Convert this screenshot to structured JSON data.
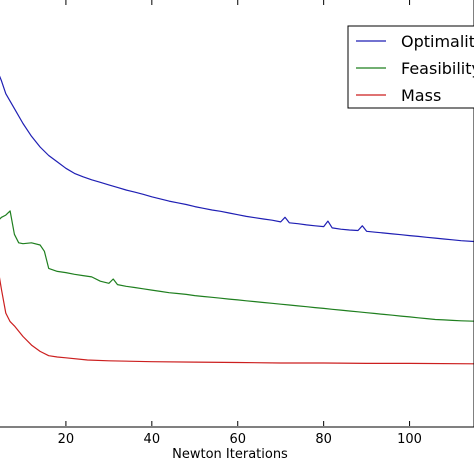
{
  "chart_data": {
    "type": "line",
    "title": "",
    "xlabel": "Newton Iterations",
    "ylabel": "",
    "xlim": [
      0,
      115
    ],
    "ylim": [
      0,
      1
    ],
    "x_ticks": [
      20,
      40,
      60,
      80,
      100
    ],
    "grid": false,
    "legend_position": "top-right",
    "series": [
      {
        "name": "Optimality",
        "color": "#1f1fb4",
        "x": [
          0,
          2,
          4,
          5,
          6,
          8,
          10,
          12,
          14,
          16,
          18,
          20,
          22,
          24,
          26,
          28,
          30,
          32,
          34,
          36,
          38,
          40,
          42,
          44,
          46,
          48,
          50,
          52,
          54,
          56,
          58,
          60,
          62,
          64,
          66,
          68,
          70,
          71,
          72,
          74,
          76,
          78,
          80,
          81,
          82,
          84,
          86,
          88,
          89,
          90,
          92,
          94,
          96,
          98,
          100,
          102,
          104,
          106,
          108,
          110,
          112,
          115
        ],
        "y": [
          0.845,
          0.845,
          0.835,
          0.81,
          0.78,
          0.745,
          0.71,
          0.68,
          0.655,
          0.635,
          0.62,
          0.605,
          0.593,
          0.585,
          0.578,
          0.572,
          0.566,
          0.56,
          0.554,
          0.549,
          0.544,
          0.538,
          0.533,
          0.528,
          0.524,
          0.52,
          0.515,
          0.511,
          0.507,
          0.504,
          0.5,
          0.496,
          0.492,
          0.489,
          0.486,
          0.483,
          0.479,
          0.49,
          0.477,
          0.475,
          0.472,
          0.47,
          0.468,
          0.481,
          0.465,
          0.462,
          0.46,
          0.459,
          0.47,
          0.457,
          0.455,
          0.453,
          0.451,
          0.449,
          0.447,
          0.445,
          0.443,
          0.441,
          0.439,
          0.437,
          0.435,
          0.433
        ]
      },
      {
        "name": "Feasibility",
        "color": "#1f7f1f",
        "x": [
          0,
          2,
          4,
          5,
          6,
          7,
          8,
          9,
          10,
          12,
          14,
          15,
          16,
          18,
          20,
          22,
          24,
          26,
          28,
          30,
          31,
          32,
          34,
          36,
          38,
          40,
          42,
          44,
          46,
          48,
          50,
          52,
          54,
          56,
          58,
          60,
          62,
          64,
          66,
          68,
          70,
          72,
          74,
          76,
          78,
          80,
          82,
          84,
          86,
          88,
          90,
          92,
          94,
          96,
          98,
          100,
          102,
          104,
          106,
          108,
          110,
          112,
          115
        ],
        "y": [
          0.49,
          0.49,
          0.48,
          0.49,
          0.495,
          0.505,
          0.45,
          0.43,
          0.428,
          0.43,
          0.425,
          0.41,
          0.37,
          0.363,
          0.36,
          0.356,
          0.353,
          0.35,
          0.34,
          0.335,
          0.345,
          0.332,
          0.328,
          0.325,
          0.322,
          0.319,
          0.316,
          0.313,
          0.311,
          0.309,
          0.306,
          0.304,
          0.302,
          0.3,
          0.298,
          0.296,
          0.294,
          0.292,
          0.29,
          0.288,
          0.286,
          0.284,
          0.282,
          0.28,
          0.278,
          0.276,
          0.274,
          0.272,
          0.27,
          0.268,
          0.266,
          0.264,
          0.262,
          0.26,
          0.258,
          0.256,
          0.254,
          0.252,
          0.25,
          0.249,
          0.248,
          0.247,
          0.246
        ]
      },
      {
        "name": "Mass",
        "color": "#cc1f1f",
        "x": [
          0,
          2,
          3,
          4,
          5,
          6,
          7,
          8,
          10,
          12,
          14,
          16,
          18,
          20,
          25,
          30,
          40,
          50,
          60,
          70,
          80,
          90,
          100,
          115
        ],
        "y": [
          0.47,
          0.47,
          0.45,
          0.38,
          0.32,
          0.265,
          0.245,
          0.235,
          0.21,
          0.19,
          0.175,
          0.165,
          0.162,
          0.16,
          0.155,
          0.153,
          0.151,
          0.15,
          0.149,
          0.148,
          0.148,
          0.147,
          0.147,
          0.146
        ]
      }
    ]
  }
}
